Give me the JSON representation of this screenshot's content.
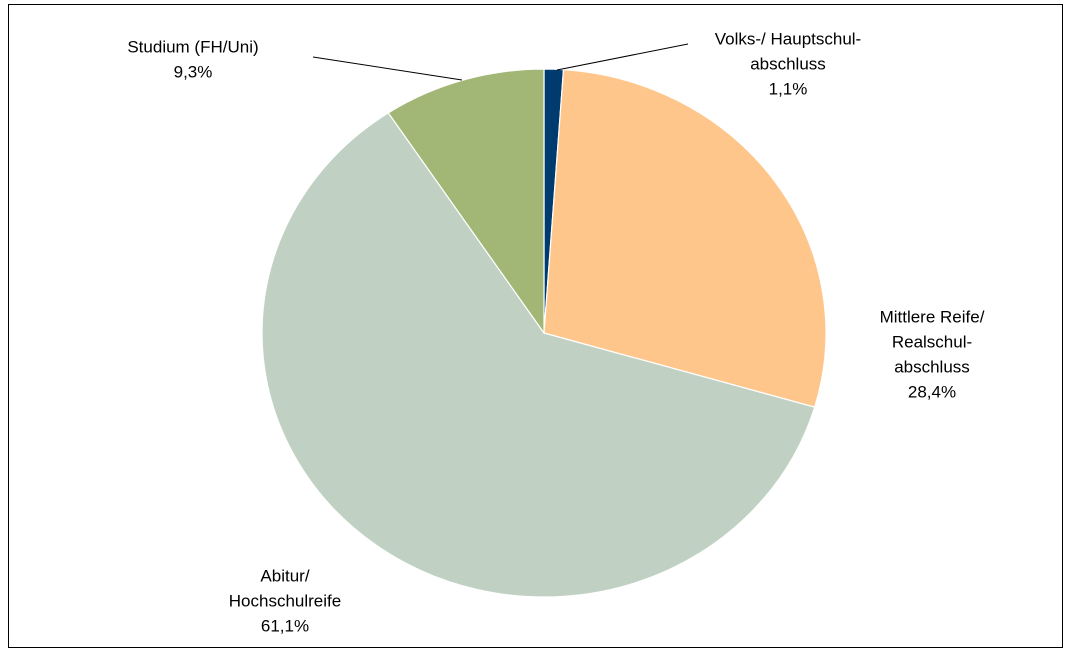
{
  "chart_data": {
    "type": "pie",
    "categories": [
      [
        "Volks-/ Hauptschul-",
        "abschluss"
      ],
      [
        "Mittlere Reife/",
        "Realschul-",
        "abschluss"
      ],
      [
        "Abitur/",
        "Hochschulreife"
      ],
      [
        "Studium (FH/Uni)"
      ]
    ],
    "values": [
      1.1,
      28.4,
      61.1,
      9.3
    ],
    "value_labels": [
      "1,1%",
      "28,4%",
      "61,1%",
      "9,3%"
    ],
    "colors": [
      "#003b6f",
      "#ffc68c",
      "#c0d1c3",
      "#a2b775"
    ]
  }
}
